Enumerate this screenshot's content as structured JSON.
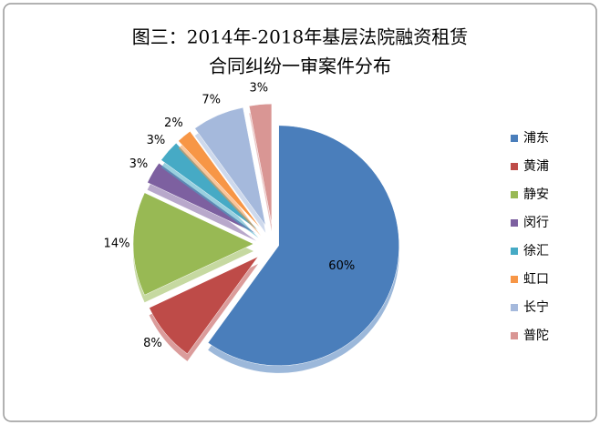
{
  "chart_data": {
    "type": "pie",
    "title": [
      "图三：2014年-2018年基层法院融资租赁",
      "合同纠纷一审案件分布"
    ],
    "categories": [
      "浦东",
      "黄浦",
      "静安",
      "闵行",
      "徐汇",
      "虹口",
      "长宁",
      "普陀"
    ],
    "values": [
      60,
      8,
      14,
      3,
      3,
      2,
      7,
      3
    ],
    "value_labels": [
      "60%",
      "8%",
      "14%",
      "3%",
      "3%",
      "2%",
      "7%",
      "3%"
    ],
    "colors": [
      "#4a7ebb",
      "#be4b48",
      "#98b954",
      "#7d60a0",
      "#46aac5",
      "#f79646",
      "#a5b9dc",
      "#d99694"
    ],
    "legend": "right"
  }
}
